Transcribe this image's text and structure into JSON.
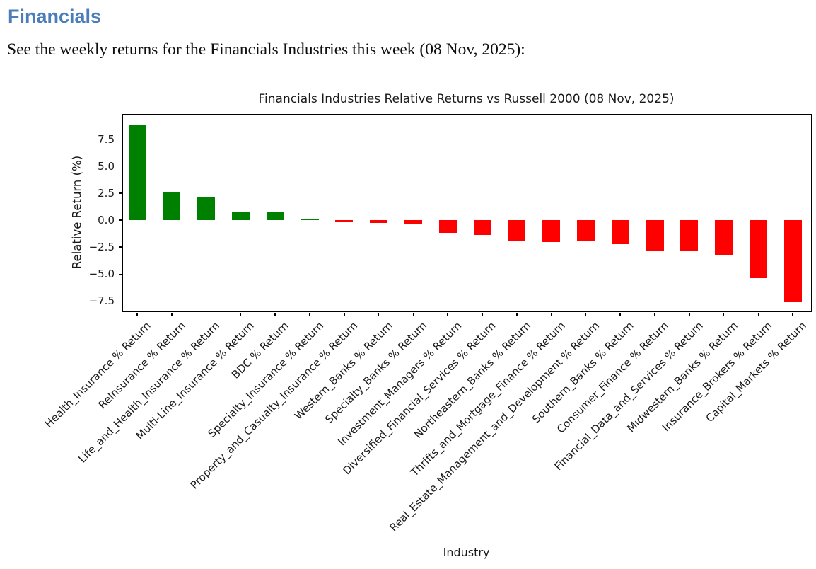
{
  "page": {
    "heading": "Financials",
    "heading_color": "#4a7dba",
    "description": "See the weekly returns for the Financials Industries this week (08 Nov, 2025):"
  },
  "chart_data": {
    "type": "bar",
    "title": "Financials Industries Relative Returns vs Russell 2000 (08 Nov, 2025)",
    "xlabel": "Industry",
    "ylabel": "Relative Return (%)",
    "categories": [
      "Health_Insurance % Return",
      "ReInsurance % Return",
      "Life_and_Health_Insurance % Return",
      "Multi-Line_Insurance % Return",
      "BDC % Return",
      "Specialty_Insurance % Return",
      "Property_and_Casualty_Insurance % Return",
      "Western_Banks % Return",
      "Specialty_Banks % Return",
      "Investment_Managers % Return",
      "Diversified_Financial_Services % Return",
      "Northeastern_Banks % Return",
      "Thrifts_and_Mortgage_Finance % Return",
      "Real_Estate_Management_and_Development % Return",
      "Southern_Banks % Return",
      "Consumer_Finance % Return",
      "Financial_Data_and_Services % Return",
      "Midwestern_Banks % Return",
      "Insurance_Brokers % Return",
      "Capital_Markets % Return"
    ],
    "values": [
      8.8,
      2.6,
      2.1,
      0.8,
      0.7,
      0.1,
      -0.1,
      -0.25,
      -0.4,
      -1.15,
      -1.4,
      -1.9,
      -2.0,
      -1.95,
      -2.2,
      -2.8,
      -2.85,
      -3.2,
      -5.35,
      -7.6
    ],
    "yticks": [
      7.5,
      5.0,
      2.5,
      0.0,
      -2.5,
      -5.0,
      -7.5
    ],
    "ylim": [
      -8.45,
      9.76
    ],
    "bar_colors": {
      "positive": "#008000",
      "negative": "#ff0000"
    },
    "grid": false,
    "legend": "none"
  }
}
